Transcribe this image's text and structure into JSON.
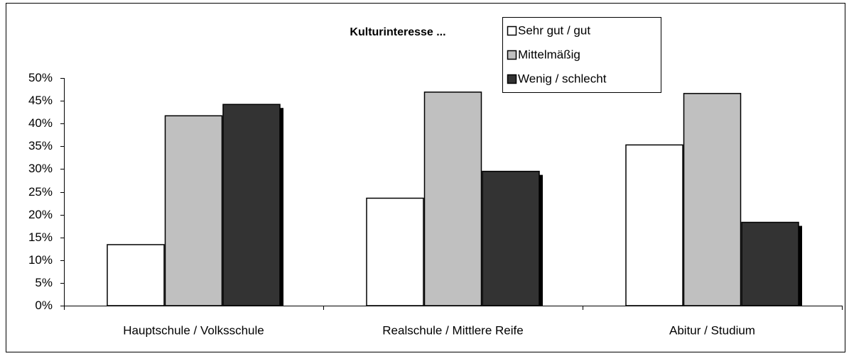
{
  "chart_data": {
    "type": "bar",
    "title": "Kulturinteresse ...",
    "categories": [
      "Hauptschule / Volksschule",
      "Realschule / Mittlere Reife",
      "Abitur / Studium"
    ],
    "series": [
      {
        "name": "Sehr gut / gut",
        "color": "#ffffff",
        "values": [
          13.4,
          23.6,
          35.3
        ]
      },
      {
        "name": "Mittelmäßig",
        "color": "#c0c0c0",
        "values": [
          41.7,
          46.9,
          46.6
        ]
      },
      {
        "name": "Wenig / schlecht",
        "color": "#333333",
        "values": [
          44.2,
          29.5,
          18.3
        ]
      }
    ],
    "ylim": [
      0,
      50
    ],
    "yticks": [
      {
        "value": 0,
        "label": "0%"
      },
      {
        "value": 5,
        "label": "5%"
      },
      {
        "value": 10,
        "label": "10%"
      },
      {
        "value": 15,
        "label": "15%"
      },
      {
        "value": 20,
        "label": "20%"
      },
      {
        "value": 25,
        "label": "25%"
      },
      {
        "value": 30,
        "label": "30%"
      },
      {
        "value": 35,
        "label": "35%"
      },
      {
        "value": 40,
        "label": "40%"
      },
      {
        "value": 45,
        "label": "45%"
      },
      {
        "value": 50,
        "label": "50%"
      }
    ],
    "grid": false
  }
}
